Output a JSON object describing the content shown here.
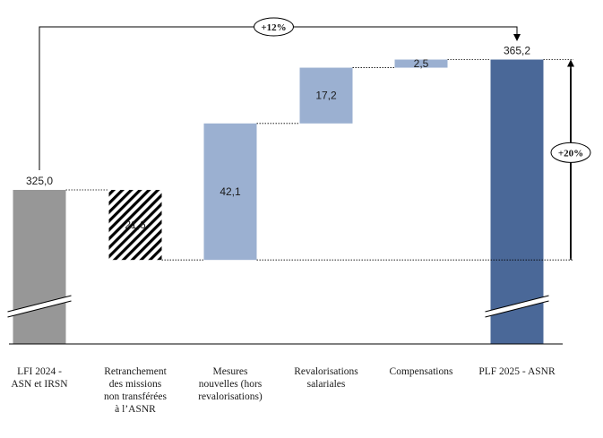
{
  "chart_data": {
    "type": "waterfall",
    "title": "",
    "categories": [
      [
        "LFI 2024 -",
        "ASN et IRSN"
      ],
      [
        "Retranchement",
        "des missions",
        "non transférées",
        "à l’ASNR"
      ],
      [
        "Mesures",
        "nouvelles (hors",
        "revalorisations)"
      ],
      [
        "Revalorisations",
        "salariales"
      ],
      [
        "Compensations"
      ],
      [
        "PLF 2025 - ASNR"
      ]
    ],
    "steps": [
      {
        "kind": "total",
        "value": 325.0,
        "label": "325,0",
        "color": "#979797"
      },
      {
        "kind": "decrease",
        "value": -21.6,
        "label": "21,6",
        "pattern": "hatched"
      },
      {
        "kind": "increase",
        "value": 42.1,
        "label": "42,1",
        "color": "#9bb0d1"
      },
      {
        "kind": "increase",
        "value": 17.2,
        "label": "17,2",
        "color": "#9bb0d1"
      },
      {
        "kind": "increase",
        "value": 2.5,
        "label": "2,5",
        "color": "#9bb0d1"
      },
      {
        "kind": "total",
        "value": 365.2,
        "label": "365,2",
        "color": "#4a6898"
      }
    ],
    "axis_break": true,
    "annotations": [
      {
        "text": "+12%",
        "from_step": 0,
        "to_step": 5
      },
      {
        "text": "+20%",
        "from_value": 303.4,
        "to_value": 365.2
      }
    ]
  }
}
